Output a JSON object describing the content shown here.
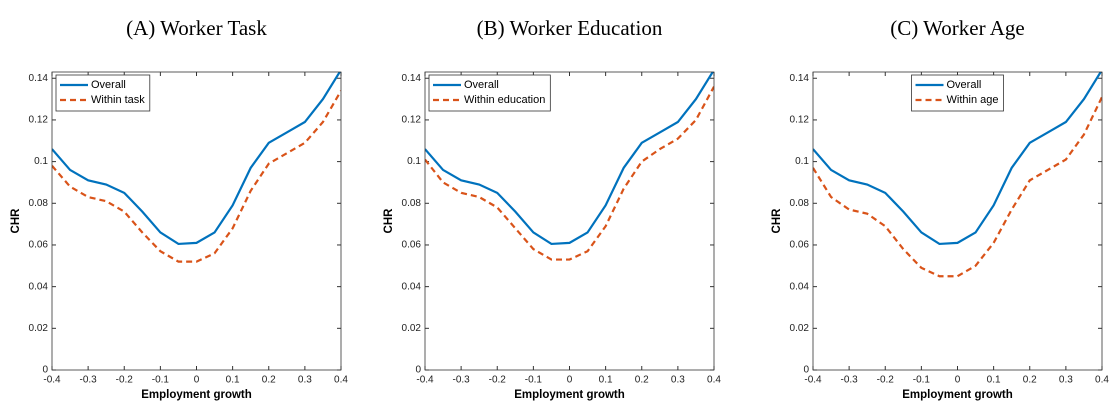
{
  "chart_data": [
    {
      "type": "line",
      "title": "(A) Worker Task",
      "x_label": "Employment growth",
      "y_label": "CHR",
      "x": [
        -0.4,
        -0.35,
        -0.3,
        -0.25,
        -0.2,
        -0.15,
        -0.1,
        -0.05,
        0,
        0.05,
        0.1,
        0.15,
        0.2,
        0.25,
        0.3,
        0.35,
        0.4
      ],
      "series": [
        {
          "name": "Overall",
          "color": "#0072bd",
          "linestyle": "solid",
          "values": [
            0.106,
            0.096,
            0.091,
            0.089,
            0.085,
            0.076,
            0.066,
            0.0605,
            0.061,
            0.066,
            0.079,
            0.097,
            0.109,
            0.114,
            0.119,
            0.13,
            0.144
          ]
        },
        {
          "name": "Within task",
          "color": "#d95319",
          "linestyle": "dashed",
          "values": [
            0.098,
            0.088,
            0.083,
            0.081,
            0.076,
            0.066,
            0.057,
            0.052,
            0.052,
            0.056,
            0.068,
            0.086,
            0.099,
            0.104,
            0.109,
            0.119,
            0.134
          ]
        }
      ],
      "xlim": [
        -0.4,
        0.4
      ],
      "xticks": [
        -0.4,
        -0.3,
        -0.2,
        -0.1,
        0,
        0.1,
        0.2,
        0.3,
        0.4
      ],
      "ylim": [
        0,
        0.143
      ],
      "yticks": [
        0,
        0.02,
        0.04,
        0.06,
        0.08,
        0.1,
        0.12,
        0.14
      ],
      "legend": "upper left",
      "grid": false
    },
    {
      "type": "line",
      "title": "(B) Worker Education",
      "x_label": "Employment growth",
      "y_label": "CHR",
      "x": [
        -0.4,
        -0.35,
        -0.3,
        -0.25,
        -0.2,
        -0.15,
        -0.1,
        -0.05,
        0,
        0.05,
        0.1,
        0.15,
        0.2,
        0.25,
        0.3,
        0.35,
        0.4
      ],
      "series": [
        {
          "name": "Overall",
          "color": "#0072bd",
          "linestyle": "solid",
          "values": [
            0.106,
            0.096,
            0.091,
            0.089,
            0.085,
            0.076,
            0.066,
            0.0605,
            0.061,
            0.066,
            0.079,
            0.097,
            0.109,
            0.114,
            0.119,
            0.13,
            0.144
          ]
        },
        {
          "name": "Within education",
          "color": "#d95319",
          "linestyle": "dashed",
          "values": [
            0.101,
            0.09,
            0.085,
            0.083,
            0.078,
            0.068,
            0.058,
            0.053,
            0.053,
            0.057,
            0.069,
            0.087,
            0.1,
            0.106,
            0.111,
            0.12,
            0.136
          ]
        }
      ],
      "xlim": [
        -0.4,
        0.4
      ],
      "xticks": [
        -0.4,
        -0.3,
        -0.2,
        -0.1,
        0,
        0.1,
        0.2,
        0.3,
        0.4
      ],
      "ylim": [
        0,
        0.143
      ],
      "yticks": [
        0,
        0.02,
        0.04,
        0.06,
        0.08,
        0.1,
        0.12,
        0.14
      ],
      "legend": "upper left",
      "grid": false
    },
    {
      "type": "line",
      "title": "(C) Worker Age",
      "x_label": "Employment growth",
      "y_label": "CHR",
      "x": [
        -0.4,
        -0.35,
        -0.3,
        -0.25,
        -0.2,
        -0.15,
        -0.1,
        -0.05,
        0,
        0.05,
        0.1,
        0.15,
        0.2,
        0.25,
        0.3,
        0.35,
        0.4
      ],
      "series": [
        {
          "name": "Overall",
          "color": "#0072bd",
          "linestyle": "solid",
          "values": [
            0.106,
            0.096,
            0.091,
            0.089,
            0.085,
            0.076,
            0.066,
            0.0605,
            0.061,
            0.066,
            0.079,
            0.097,
            0.109,
            0.114,
            0.119,
            0.13,
            0.144
          ]
        },
        {
          "name": "Within age",
          "color": "#d95319",
          "linestyle": "dashed",
          "values": [
            0.097,
            0.083,
            0.077,
            0.075,
            0.069,
            0.058,
            0.049,
            0.045,
            0.045,
            0.05,
            0.061,
            0.077,
            0.091,
            0.096,
            0.101,
            0.113,
            0.131
          ]
        }
      ],
      "xlim": [
        -0.4,
        0.4
      ],
      "xticks": [
        -0.4,
        -0.3,
        -0.2,
        -0.1,
        0,
        0.1,
        0.2,
        0.3,
        0.4
      ],
      "ylim": [
        0,
        0.143
      ],
      "yticks": [
        0,
        0.02,
        0.04,
        0.06,
        0.08,
        0.1,
        0.12,
        0.14
      ],
      "legend": "upper center",
      "grid": false
    }
  ]
}
